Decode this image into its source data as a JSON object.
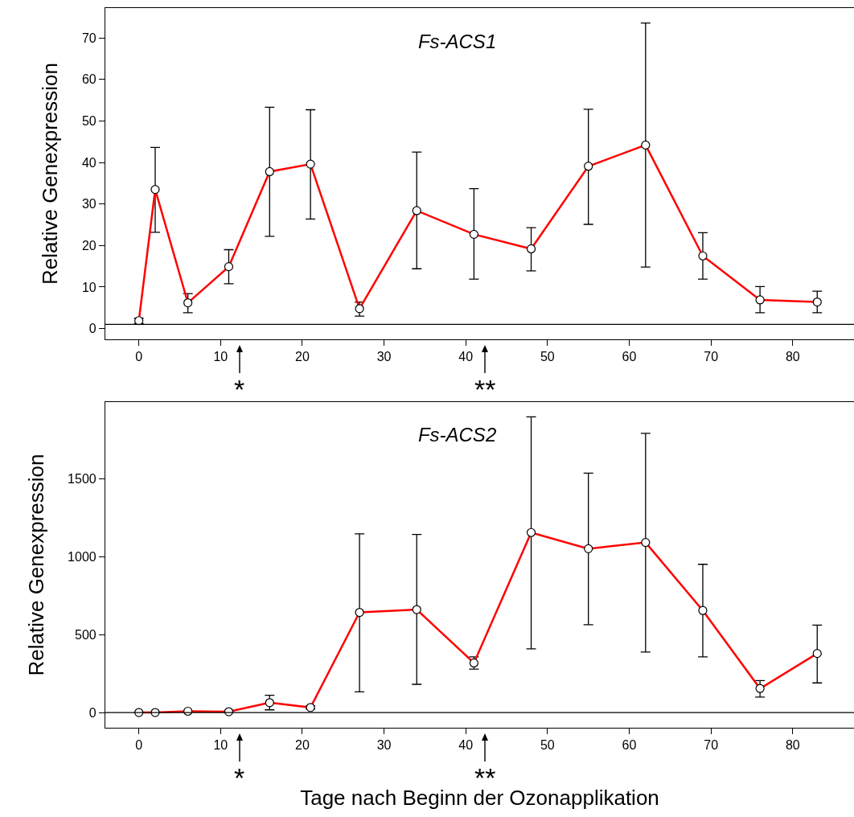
{
  "chart_data": [
    {
      "type": "line",
      "title": "Fs-ACS1",
      "ylabel": "Relative Genexpression",
      "x": [
        0,
        2,
        6,
        11,
        16,
        21,
        27,
        34,
        41,
        48,
        55,
        62,
        69,
        76,
        83
      ],
      "series": [
        {
          "color": "#ff0000",
          "values": [
            1.9,
            33.5,
            6.2,
            14.9,
            37.8,
            39.6,
            4.8,
            28.4,
            22.7,
            19.2,
            39.1,
            44.2,
            17.5,
            6.9,
            6.4
          ],
          "errors": [
            [
              1.2,
              2.5
            ],
            [
              23.2,
              43.6
            ],
            [
              3.8,
              8.4
            ],
            [
              10.8,
              19
            ],
            [
              22.2,
              53.3
            ],
            [
              26.4,
              52.7
            ],
            [
              3.0,
              6.4
            ],
            [
              14.4,
              42.5
            ],
            [
              11.9,
              33.7
            ],
            [
              13.9,
              24.3
            ],
            [
              25.1,
              52.8
            ],
            [
              14.8,
              73.6
            ],
            [
              11.9,
              23.1
            ],
            [
              3.8,
              10.1
            ],
            [
              3.8,
              9
            ]
          ]
        }
      ],
      "xlim": [
        -4.1,
        87.5
      ],
      "xticks": [
        0,
        10,
        20,
        30,
        40,
        50,
        60,
        70,
        80
      ],
      "ylim": [
        -2.6,
        77.2
      ],
      "yticks": [
        0,
        10,
        20,
        30,
        40,
        50,
        60,
        70
      ],
      "ref_lines": [
        {
          "axis": "y",
          "value": 1,
          "color": "#000000"
        }
      ],
      "annotations": [
        "*",
        "**"
      ],
      "marker": "circle",
      "line_style": "solid",
      "grid": false
    },
    {
      "type": "line",
      "title": "Fs-ACS2",
      "ylabel": "Relative Genexpression",
      "xlabel": "Tage nach Beginn der Ozonapplikation",
      "x": [
        0,
        2,
        6,
        11,
        16,
        21,
        27,
        34,
        41,
        48,
        55,
        62,
        69,
        76,
        83
      ],
      "series": [
        {
          "color": "#ff0000",
          "values": [
            1,
            1,
            9,
            6,
            64,
            33,
            644,
            662,
            319,
            1157,
            1053,
            1093,
            656,
            155,
            380
          ],
          "errors": [
            null,
            null,
            null,
            null,
            [
              18,
              112
            ],
            [
              24,
              43
            ],
            [
              134,
              1148
            ],
            [
              182,
              1145
            ],
            [
              279,
              358
            ],
            [
              410,
              1900
            ],
            [
              565,
              1539
            ],
            [
              389,
              1794
            ],
            [
              358,
              953
            ],
            [
              100,
              206
            ],
            [
              191,
              562
            ]
          ]
        }
      ],
      "xlim": [
        -4.1,
        87.5
      ],
      "xticks": [
        0,
        10,
        20,
        30,
        40,
        50,
        60,
        70,
        80
      ],
      "ylim": [
        -97,
        1995
      ],
      "yticks": [
        0,
        500,
        1000,
        1500
      ],
      "ref_lines": [
        {
          "axis": "y",
          "value": 1,
          "color": "#000000"
        }
      ],
      "annotations": [
        "*",
        "**"
      ],
      "marker": "circle",
      "line_style": "solid",
      "grid": false
    }
  ]
}
